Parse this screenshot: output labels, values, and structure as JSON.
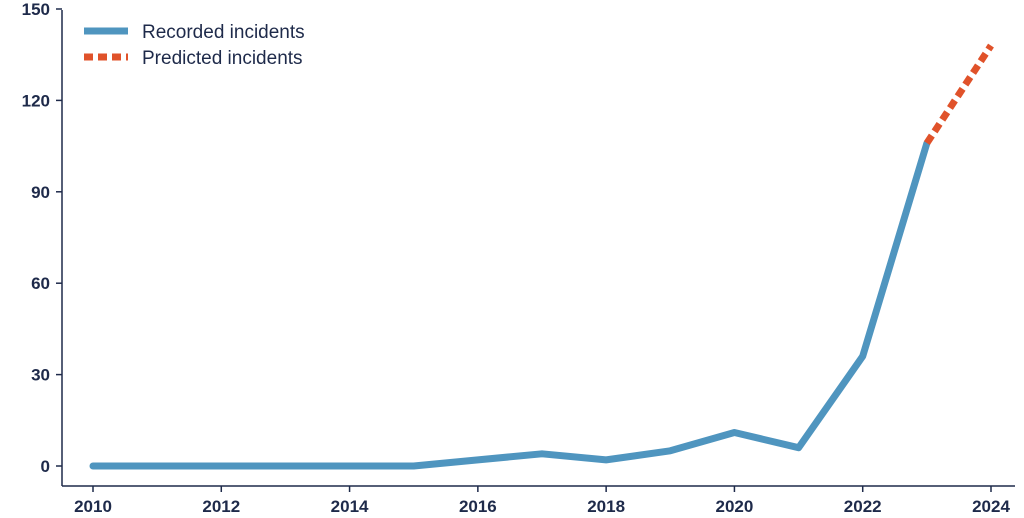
{
  "chart_data": {
    "type": "line",
    "title": "",
    "xlabel": "",
    "ylabel": "",
    "xlim": [
      2010,
      2024
    ],
    "ylim": [
      0,
      150
    ],
    "x_ticks": [
      "2010",
      "2012",
      "2014",
      "2016",
      "2018",
      "2020",
      "2022",
      "2024"
    ],
    "y_ticks": [
      "0",
      "30",
      "60",
      "90",
      "120",
      "150"
    ],
    "grid": false,
    "legend_position": "top-left",
    "series": [
      {
        "name": "Recorded incidents",
        "color": "#4f95bf",
        "style": "solid",
        "x": [
          2010,
          2011,
          2012,
          2013,
          2014,
          2015,
          2016,
          2017,
          2018,
          2019,
          2020,
          2021,
          2022,
          2023
        ],
        "y": [
          0,
          0,
          0,
          0,
          0,
          0,
          2,
          4,
          2,
          5,
          11,
          6,
          36,
          106
        ]
      },
      {
        "name": "Predicted incidents",
        "color": "#e0522a",
        "style": "dashed",
        "x": [
          2023,
          2024
        ],
        "y": [
          106,
          138
        ]
      }
    ]
  }
}
